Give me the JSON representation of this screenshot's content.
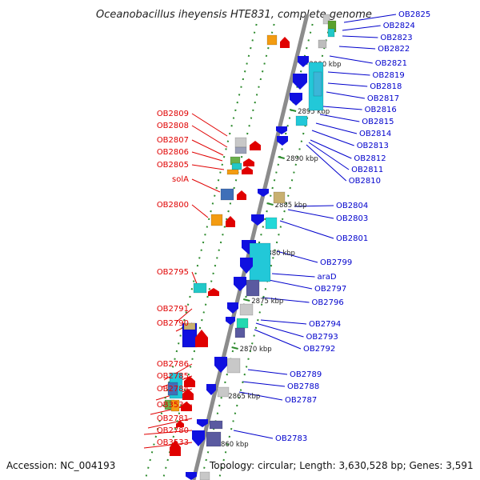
{
  "title": "Oceanobacillus iheyensis HTE831, complete genome",
  "accession_label": "Accession: NC_004193",
  "topology_label": "Topology: circular; Length: 3,630,528 bp; Genes: 3,591",
  "colors": {
    "forward_label": "#e00000",
    "reverse_label": "#0000cc",
    "backbone": "#8c8c8c",
    "tick": "#2c8a2c"
  },
  "scale_labels": [
    "2900 kbp",
    "2895 kbp",
    "2890 kbp",
    "2885 kbp",
    "2880 kbp",
    "2875 kbp",
    "2870 kbp",
    "2865 kbp",
    "2860 kbp"
  ],
  "forward_genes": [
    "OB2809",
    "OB2808",
    "OB2807",
    "OB2806",
    "OB2805",
    "solA",
    "OB2800",
    "OB2795",
    "OB2791",
    "OB2790",
    "OB2786",
    "OB2785",
    "OB2784",
    "OB3534",
    "OB2781",
    "OB2780",
    "OB3533"
  ],
  "reverse_genes": [
    "OB2825",
    "OB2824",
    "OB2823",
    "OB2822",
    "OB2821",
    "OB2819",
    "OB2818",
    "OB2817",
    "OB2816",
    "OB2815",
    "OB2814",
    "OB2813",
    "OB2812",
    "OB2811",
    "OB2810",
    "OB2804",
    "OB2803",
    "OB2801",
    "OB2799",
    "araD",
    "OB2797",
    "OB2796",
    "OB2794",
    "OB2793",
    "OB2792",
    "OB2789",
    "OB2788",
    "OB2787",
    "OB2783"
  ]
}
